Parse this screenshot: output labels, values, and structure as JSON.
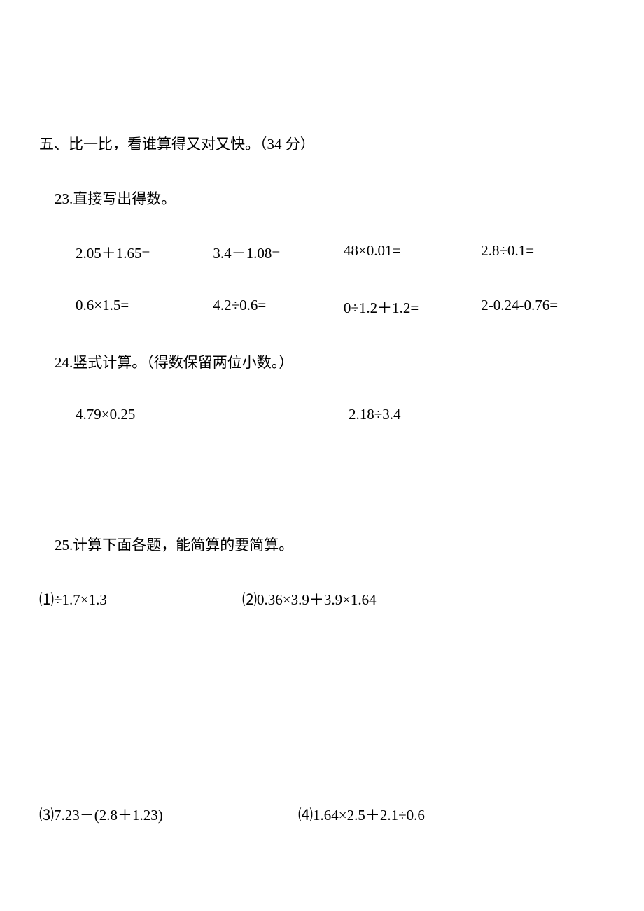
{
  "page": {
    "background_color": "#ffffff",
    "text_color": "#000000",
    "font_family": "SimSun",
    "base_fontsize": 21
  },
  "section5": {
    "title": "五、比一比，看谁算得又对又快。（34 分）",
    "q23": {
      "heading": "23.直接写出得数。",
      "row1": {
        "c1": "2.05＋1.65=",
        "c2": "3.4－1.08=",
        "c3": "48×0.01=",
        "c4": "2.8÷0.1="
      },
      "row2": {
        "c1": "0.6×1.5=",
        "c2": "4.2÷0.6=",
        "c3": "0÷1.2＋1.2=",
        "c4": "2-0.24-0.76="
      }
    },
    "q24": {
      "heading": "24.竖式计算。（得数保留两位小数。）",
      "row1": {
        "c1": "4.79×0.25",
        "c2": "2.18÷3.4"
      }
    },
    "q25": {
      "heading": "25.计算下面各题，能简算的要简算。",
      "row1": {
        "c1": "⑴÷1.7×1.3",
        "c2": "⑵0.36×3.9＋3.9×1.64"
      },
      "row2": {
        "c1": "⑶7.23－(2.8＋1.23)",
        "c2": "⑷1.64×2.5＋2.1÷0.6"
      }
    }
  }
}
